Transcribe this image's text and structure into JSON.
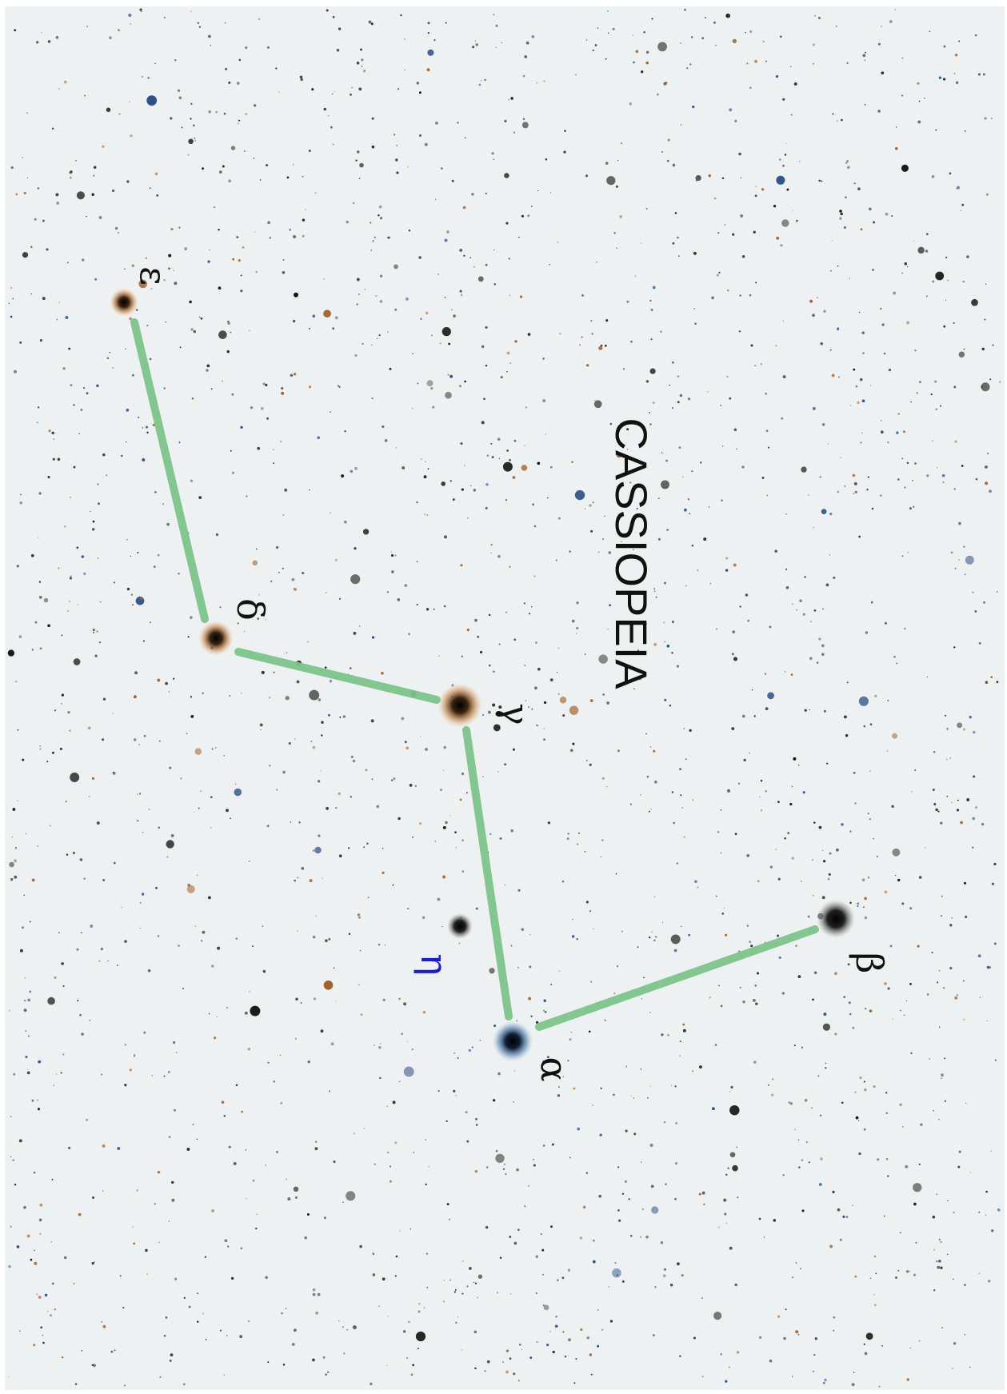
{
  "title": "CASSIOPEIA",
  "stars": [
    {
      "label": "ε"
    },
    {
      "label": "δ"
    },
    {
      "label": "γ"
    },
    {
      "label": "η"
    },
    {
      "label": "α"
    },
    {
      "label": "β"
    }
  ]
}
